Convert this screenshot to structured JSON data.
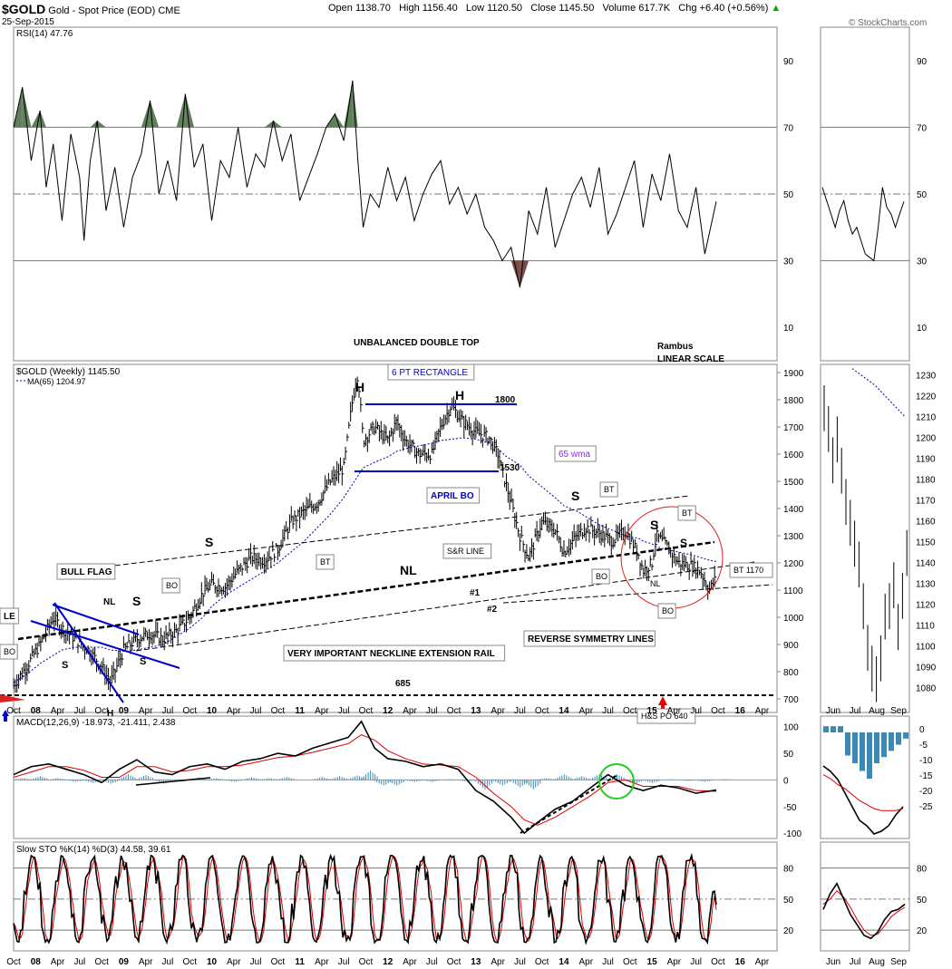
{
  "header": {
    "symbol": "$GOLD",
    "name": "Gold - Spot Price (EOD)",
    "exchange": "CME",
    "date": "25-Sep-2015",
    "quote": "Open 1138.70   High 1156.40   Low 1120.50   Close 1145.50   Volume 617.7K   Chg +6.40 (+0.56%)",
    "quote_arrow": "▲",
    "credit": "© StockCharts.com"
  },
  "chart_data": [
    {
      "type": "line",
      "panel": "rsi",
      "title": "RSI(14) 47.76",
      "ylim": [
        0,
        100
      ],
      "yticks": [
        10,
        30,
        50,
        70,
        90
      ],
      "reference_lines": [
        30,
        50,
        70
      ],
      "x": [
        2007.75,
        2007.85,
        2007.95,
        2008.05,
        2008.12,
        2008.2,
        2008.3,
        2008.4,
        2008.5,
        2008.55,
        2008.62,
        2008.7,
        2008.8,
        2008.9,
        2009.0,
        2009.1,
        2009.2,
        2009.3,
        2009.4,
        2009.5,
        2009.6,
        2009.7,
        2009.8,
        2009.9,
        2010.0,
        2010.1,
        2010.2,
        2010.3,
        2010.4,
        2010.5,
        2010.6,
        2010.7,
        2010.8,
        2010.9,
        2011.0,
        2011.1,
        2011.2,
        2011.3,
        2011.4,
        2011.5,
        2011.6,
        2011.66,
        2011.72,
        2011.8,
        2011.9,
        2012.0,
        2012.1,
        2012.2,
        2012.3,
        2012.4,
        2012.5,
        2012.6,
        2012.7,
        2012.8,
        2012.9,
        2013.0,
        2013.1,
        2013.2,
        2013.3,
        2013.4,
        2013.5,
        2013.6,
        2013.7,
        2013.8,
        2013.9,
        2014.0,
        2014.1,
        2014.2,
        2014.3,
        2014.4,
        2014.5,
        2014.6,
        2014.7,
        2014.8,
        2014.9,
        2015.0,
        2015.1,
        2015.2,
        2015.3,
        2015.4,
        2015.5,
        2015.6,
        2015.73
      ],
      "values": [
        70,
        82,
        60,
        75,
        52,
        65,
        42,
        68,
        55,
        36,
        60,
        72,
        45,
        58,
        40,
        55,
        62,
        78,
        50,
        60,
        48,
        80,
        58,
        65,
        42,
        60,
        55,
        70,
        52,
        62,
        58,
        72,
        60,
        68,
        48,
        55,
        62,
        70,
        74,
        66,
        84,
        60,
        40,
        50,
        46,
        58,
        48,
        55,
        42,
        50,
        56,
        60,
        47,
        52,
        44,
        50,
        40,
        36,
        30,
        34,
        22,
        45,
        38,
        52,
        34,
        42,
        50,
        55,
        46,
        58,
        38,
        44,
        52,
        60,
        40,
        56,
        48,
        62,
        45,
        40,
        52,
        32,
        47.76
      ],
      "overbought_fill": "#5f7f5a",
      "oversold_fill": "#7a4b47",
      "inset": {
        "x_labels": [
          "Jun",
          "Jul",
          "Aug",
          "Sep"
        ],
        "values": [
          52,
          48,
          44,
          40,
          45,
          48,
          42,
          38,
          40,
          36,
          32,
          31,
          30,
          40,
          52,
          46,
          44,
          40,
          44,
          47.76
        ]
      }
    },
    {
      "type": "ohlc",
      "panel": "price",
      "title": "$GOLD (Weekly) 1145.50",
      "series": [
        {
          "name": "MA(65) 1204.97",
          "style": "dotted",
          "color": "#0000aa"
        }
      ],
      "ylim": [
        650,
        1930
      ],
      "yticks": [
        700,
        800,
        900,
        1000,
        1100,
        1200,
        1300,
        1400,
        1500,
        1600,
        1700,
        1800,
        1900
      ],
      "x_labels": [
        "Oct",
        "08",
        "Apr",
        "Jul",
        "Oct",
        "09",
        "Apr",
        "Jul",
        "Oct",
        "10",
        "Apr",
        "Jul",
        "Oct",
        "11",
        "Apr",
        "Jul",
        "Oct",
        "12",
        "Apr",
        "Jul",
        "Oct",
        "13",
        "Apr",
        "Jul",
        "Oct",
        "14",
        "Apr",
        "Jul",
        "Oct",
        "15",
        "Apr",
        "Jul",
        "Oct",
        "16",
        "Apr"
      ],
      "price_x": [
        2007.75,
        2007.9,
        2008.05,
        2008.2,
        2008.3,
        2008.45,
        2008.6,
        2008.75,
        2008.85,
        2009.0,
        2009.15,
        2009.3,
        2009.45,
        2009.6,
        2009.75,
        2009.9,
        2010.0,
        2010.15,
        2010.3,
        2010.45,
        2010.6,
        2010.75,
        2010.9,
        2011.05,
        2011.2,
        2011.35,
        2011.5,
        2011.6,
        2011.66,
        2011.72,
        2011.85,
        2012.0,
        2012.1,
        2012.2,
        2012.35,
        2012.5,
        2012.6,
        2012.72,
        2012.85,
        2013.0,
        2013.15,
        2013.25,
        2013.35,
        2013.5,
        2013.6,
        2013.75,
        2013.9,
        2014.0,
        2014.15,
        2014.25,
        2014.4,
        2014.55,
        2014.7,
        2014.85,
        2014.9,
        2015.0,
        2015.05,
        2015.15,
        2015.3,
        2015.45,
        2015.55,
        2015.65,
        2015.73
      ],
      "price_close": [
        750,
        820,
        900,
        1000,
        960,
        920,
        880,
        820,
        760,
        880,
        920,
        940,
        920,
        950,
        1000,
        1090,
        1120,
        1110,
        1170,
        1220,
        1210,
        1250,
        1350,
        1390,
        1420,
        1500,
        1550,
        1800,
        1900,
        1650,
        1700,
        1650,
        1720,
        1650,
        1600,
        1600,
        1700,
        1780,
        1720,
        1680,
        1660,
        1600,
        1480,
        1300,
        1220,
        1350,
        1320,
        1240,
        1300,
        1330,
        1310,
        1280,
        1320,
        1230,
        1170,
        1200,
        1300,
        1270,
        1200,
        1190,
        1170,
        1100,
        1145.5
      ],
      "ma_values": [
        760,
        790,
        830,
        860,
        880,
        890,
        890,
        890,
        880,
        875,
        880,
        890,
        900,
        930,
        960,
        1000,
        1040,
        1080,
        1110,
        1140,
        1170,
        1200,
        1240,
        1280,
        1330,
        1380,
        1440,
        1490,
        1520,
        1550,
        1570,
        1590,
        1610,
        1620,
        1630,
        1640,
        1650,
        1655,
        1660,
        1655,
        1640,
        1620,
        1590,
        1560,
        1520,
        1480,
        1440,
        1410,
        1390,
        1370,
        1340,
        1320,
        1300,
        1290,
        1280,
        1270,
        1260,
        1250,
        1240,
        1230,
        1220,
        1210,
        1204.97
      ],
      "inset": {
        "yticks": [
          1080,
          1090,
          1100,
          1110,
          1120,
          1130,
          1140,
          1150,
          1160,
          1170,
          1180,
          1190,
          1200,
          1210,
          1220,
          1230
        ],
        "x_labels": [
          "Jun",
          "Jul",
          "Aug",
          "Sep"
        ],
        "ylim": [
          1068,
          1235
        ]
      },
      "annotations": [
        {
          "text": "UNBALANCED DOUBLE TOP"
        },
        {
          "text": "Rambus"
        },
        {
          "text": "LINEAR SCALE"
        },
        {
          "text": "H"
        },
        {
          "text": "H"
        },
        {
          "text": "6 PT RECTANGLE"
        },
        {
          "text": "1800"
        },
        {
          "text": "1530"
        },
        {
          "text": "APRIL BO"
        },
        {
          "text": "65 wma"
        },
        {
          "text": "BT"
        },
        {
          "text": "S"
        },
        {
          "text": "S"
        },
        {
          "text": "S"
        },
        {
          "text": "S"
        },
        {
          "text": "S"
        },
        {
          "text": "S"
        },
        {
          "text": "S"
        },
        {
          "text": "BT"
        },
        {
          "text": "BT"
        },
        {
          "text": "BT 1170"
        },
        {
          "text": "BO"
        },
        {
          "text": "BO"
        },
        {
          "text": "BO"
        },
        {
          "text": "BO"
        },
        {
          "text": "NL"
        },
        {
          "text": "NL"
        },
        {
          "text": "NL"
        },
        {
          "text": "H"
        },
        {
          "text": "S&R LINE"
        },
        {
          "text": "#1"
        },
        {
          "text": "#2"
        },
        {
          "text": "REVERSE SYMMETRY LINES"
        },
        {
          "text": "VERY IMPORTANT NECKLINE EXTENSION RAIL"
        },
        {
          "text": "BULL FLAG"
        },
        {
          "text": "685"
        },
        {
          "text": "H&S PO 640"
        },
        {
          "text": "LE"
        },
        {
          "text": "BO"
        }
      ]
    },
    {
      "type": "line",
      "panel": "macd",
      "title": "MACD(12,26,9) -18.973, -21.411, 2.438",
      "ylim": [
        -110,
        120
      ],
      "yticks": [
        -100,
        -50,
        0,
        50,
        100
      ],
      "x": [
        2007.75,
        2007.95,
        2008.15,
        2008.35,
        2008.55,
        2008.75,
        2008.95,
        2009.15,
        2009.35,
        2009.55,
        2009.75,
        2009.95,
        2010.15,
        2010.35,
        2010.55,
        2010.75,
        2010.95,
        2011.15,
        2011.35,
        2011.55,
        2011.7,
        2011.85,
        2012.0,
        2012.2,
        2012.4,
        2012.6,
        2012.8,
        2013.0,
        2013.2,
        2013.4,
        2013.55,
        2013.7,
        2013.9,
        2014.1,
        2014.3,
        2014.5,
        2014.7,
        2014.9,
        2015.1,
        2015.3,
        2015.5,
        2015.73
      ],
      "macd": [
        10,
        25,
        30,
        20,
        10,
        -5,
        20,
        38,
        15,
        10,
        25,
        30,
        20,
        35,
        40,
        50,
        45,
        60,
        70,
        80,
        110,
        60,
        40,
        35,
        25,
        30,
        20,
        -20,
        -40,
        -70,
        -100,
        -80,
        -55,
        -40,
        -15,
        10,
        -10,
        -20,
        -10,
        -15,
        -25,
        -18.973
      ],
      "signal": [
        5,
        15,
        25,
        25,
        18,
        5,
        5,
        25,
        25,
        15,
        18,
        25,
        25,
        28,
        35,
        42,
        45,
        52,
        60,
        68,
        85,
        75,
        55,
        40,
        30,
        28,
        25,
        5,
        -25,
        -50,
        -75,
        -85,
        -70,
        -50,
        -30,
        -5,
        0,
        -12,
        -12,
        -12,
        -20,
        -21.411
      ],
      "histogram_last": 2.438,
      "inset": {
        "yticks": [
          0,
          -5,
          -10,
          -15,
          -20,
          -25
        ],
        "x_labels": [
          "Jun",
          "Jul",
          "Aug",
          "Sep"
        ]
      }
    },
    {
      "type": "line",
      "panel": "sto",
      "title": "Slow STO %K(14) %D(3) 44.58, 39.61",
      "ylim": [
        0,
        105
      ],
      "yticks": [
        20,
        50,
        80
      ],
      "reference_lines": [
        20,
        50,
        80
      ],
      "x_labels": [
        "Oct",
        "08",
        "Apr",
        "Jul",
        "Oct",
        "09",
        "Apr",
        "Jul",
        "Oct",
        "10",
        "Apr",
        "Jul",
        "Oct",
        "11",
        "Apr",
        "Jul",
        "Oct",
        "12",
        "Apr",
        "Jul",
        "Oct",
        "13",
        "Apr",
        "Jul",
        "Oct",
        "14",
        "Apr",
        "Jul",
        "Oct",
        "15",
        "Apr",
        "Jul",
        "Oct",
        "16",
        "Apr"
      ],
      "k_last": 44.58,
      "d_last": 39.61,
      "inset": {
        "x_labels": [
          "Jun",
          "Jul",
          "Aug",
          "Sep"
        ]
      }
    }
  ]
}
